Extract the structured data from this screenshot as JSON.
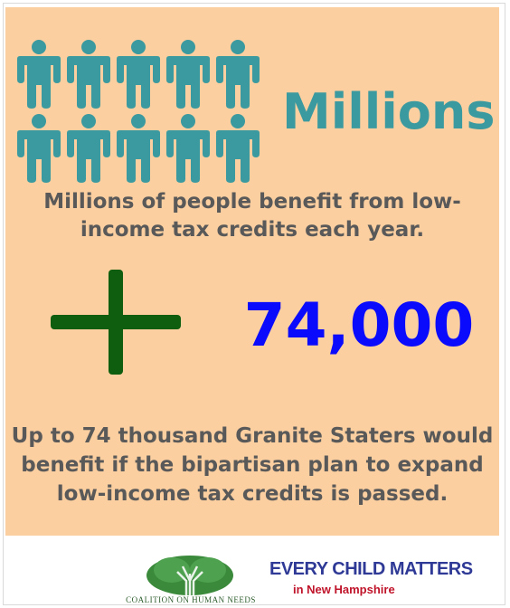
{
  "headline": "Millions",
  "description": "Millions of people benefit from low-income tax credits each year.",
  "big_number": "74,000",
  "footnote": "Up to 74 thousand Granite Staters would benefit if the bipartisan plan to expand low-income tax credits is passed.",
  "icons": {
    "people": "person-icon",
    "plus": "plus-icon",
    "tree": "tree-icon"
  },
  "colors": {
    "background": "#fbcfa0",
    "teal": "#3a9a9f",
    "blue": "#0a0afc",
    "green": "#0f5e0f",
    "gray_text": "#595959"
  },
  "footer": {
    "left_logo_text": "Coalition on Human Needs",
    "right_logo_line1": "Every Child matters",
    "right_logo_line2": "in New Hampshire"
  }
}
